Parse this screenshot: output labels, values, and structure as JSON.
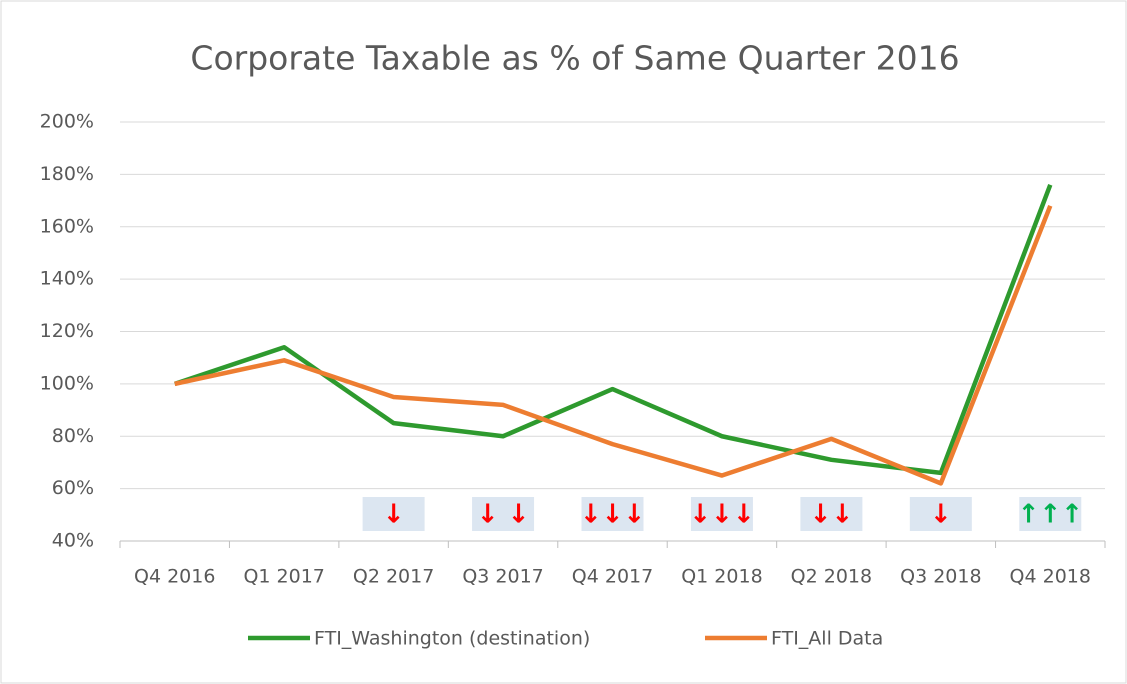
{
  "chart_data": {
    "type": "line",
    "title": "Corporate Taxable as % of Same Quarter 2016",
    "categories": [
      "Q4 2016",
      "Q1 2017",
      "Q2 2017",
      "Q3 2017",
      "Q4 2017",
      "Q1 2018",
      "Q2 2018",
      "Q3 2018",
      "Q4 2018"
    ],
    "series": [
      {
        "name": "FTI_Washington (destination)",
        "color": "#2e9a2e",
        "values": [
          100,
          114,
          85,
          80,
          98,
          80,
          71,
          66,
          176
        ]
      },
      {
        "name": "FTI_All Data",
        "color": "#ed7d31",
        "values": [
          100,
          109,
          95,
          92,
          77,
          65,
          79,
          62,
          168
        ]
      }
    ],
    "annotations": [
      null,
      null,
      {
        "text": "↓",
        "color": "#ff0000"
      },
      {
        "text": "↓ ↓",
        "color": "#ff0000"
      },
      {
        "text": "↓↓↓",
        "color": "#ff0000"
      },
      {
        "text": "↓↓↓",
        "color": "#ff0000"
      },
      {
        "text": "↓↓",
        "color": "#ff0000"
      },
      {
        "text": "↓",
        "color": "#ff0000"
      },
      {
        "text": "↑↑↑",
        "color": "#00b050"
      }
    ],
    "ylim": [
      40,
      200
    ],
    "yticks": [
      {
        "value": 40,
        "label": "40%"
      },
      {
        "value": 60,
        "label": "60%"
      },
      {
        "value": 80,
        "label": "80%"
      },
      {
        "value": 100,
        "label": "100%"
      },
      {
        "value": 120,
        "label": "120%"
      },
      {
        "value": 140,
        "label": "140%"
      },
      {
        "value": 160,
        "label": "160%"
      },
      {
        "value": 180,
        "label": "180%"
      },
      {
        "value": 200,
        "label": "200%"
      }
    ],
    "grid": true,
    "legend": "bottom"
  }
}
